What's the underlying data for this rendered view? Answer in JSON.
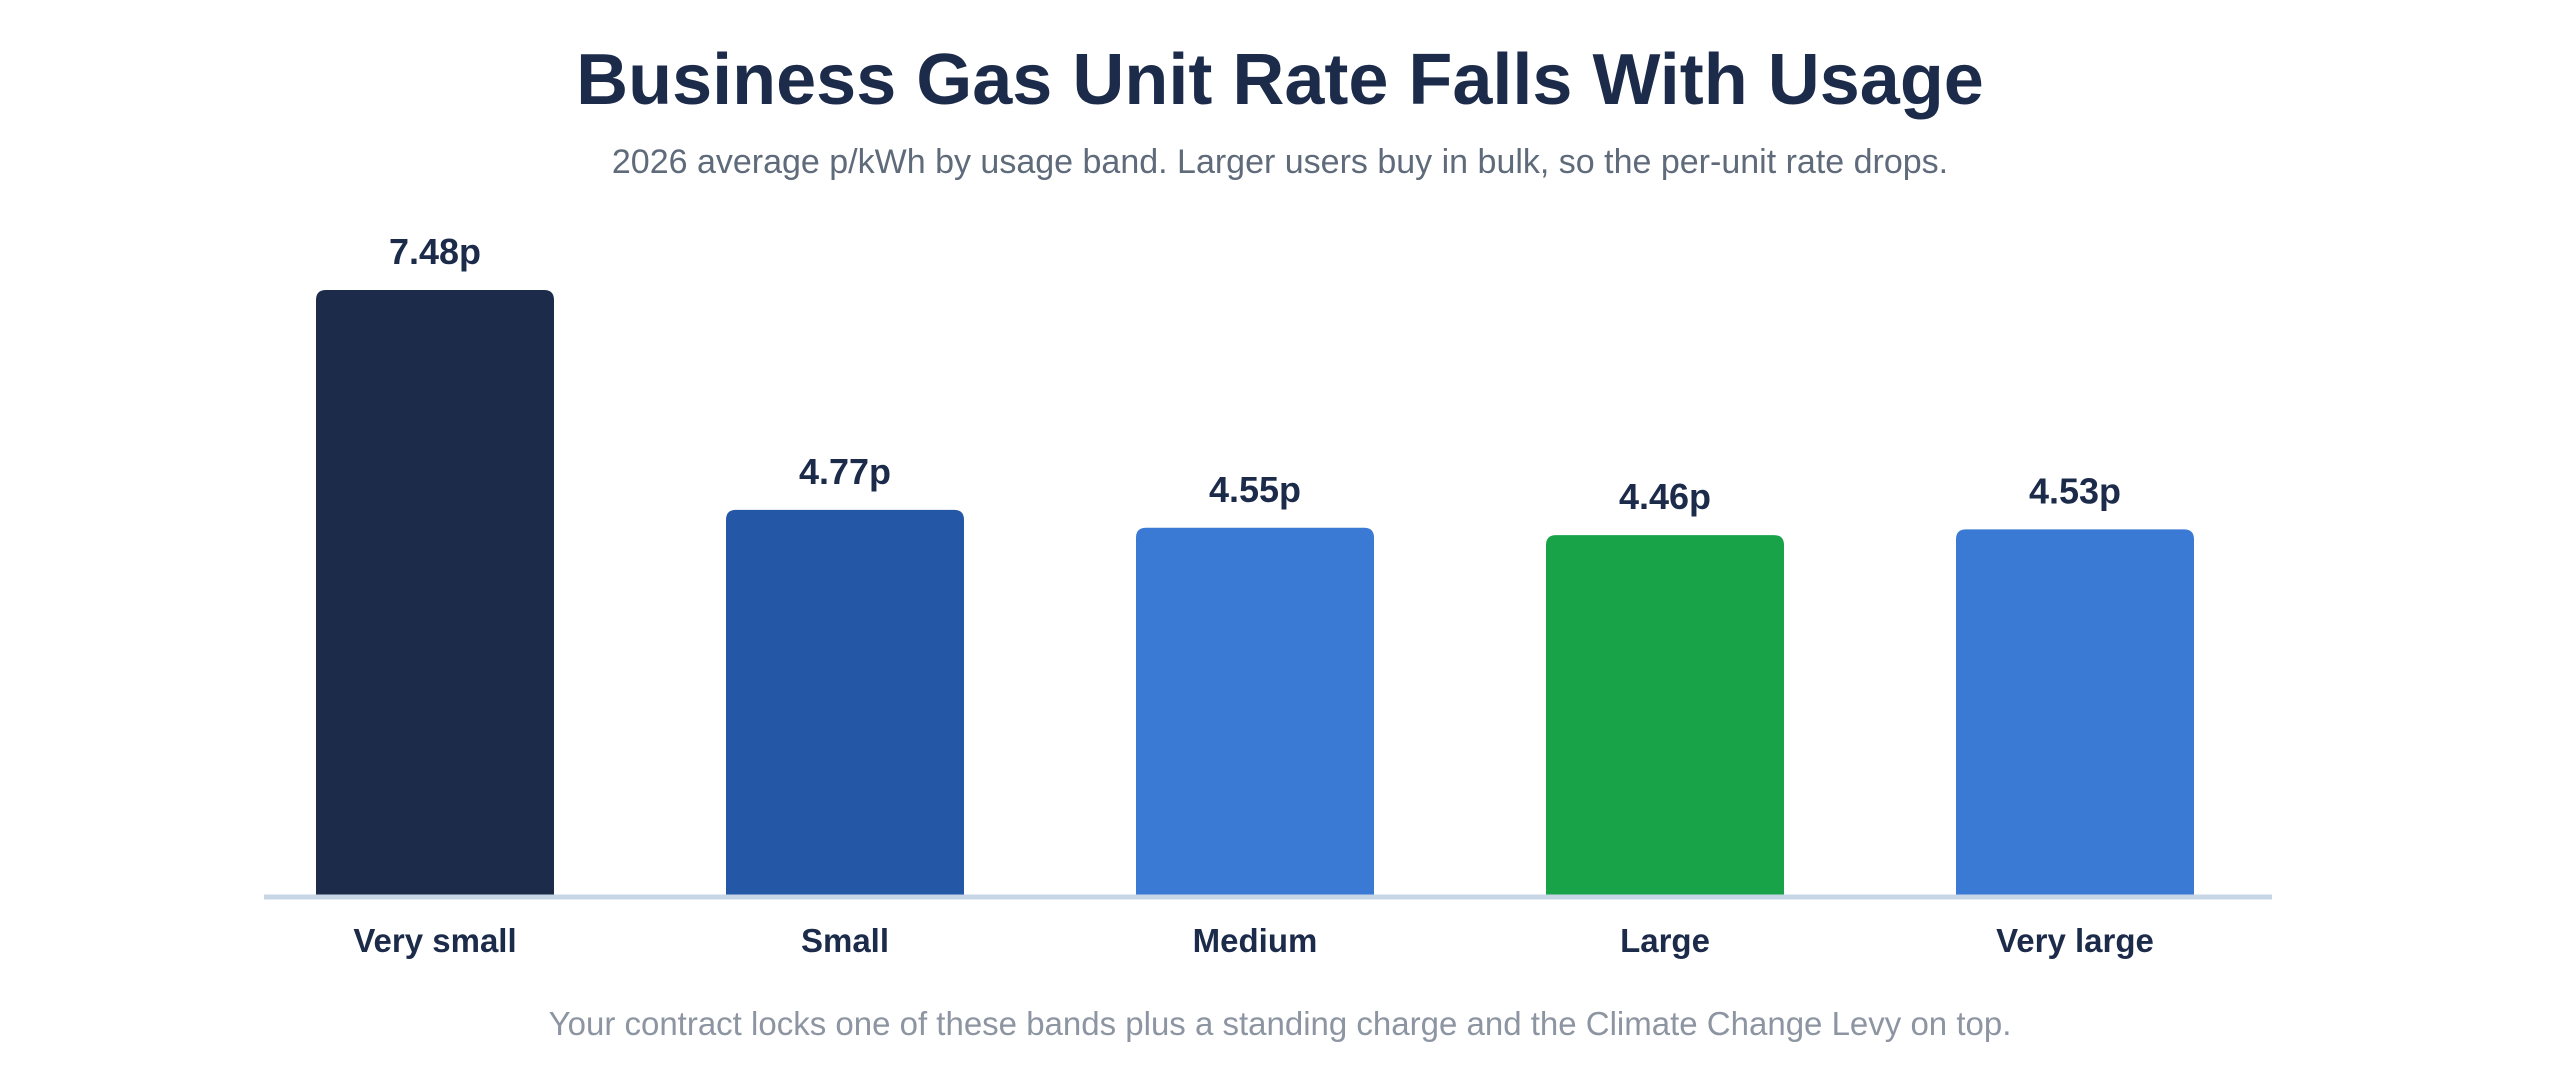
{
  "header": {
    "title": "Business Gas Unit Rate Falls With Usage",
    "subtitle": "2026 average p/kWh by usage band. Larger users buy in bulk, so the per-unit rate drops."
  },
  "footer": {
    "note": "Your contract locks one of these bands plus a standing charge and the Climate Change Levy on top."
  },
  "chart_data": {
    "type": "bar",
    "title": "Business Gas Unit Rate Falls With Usage",
    "subtitle": "2026 average p/kWh by usage band. Larger users buy in bulk, so the per-unit rate drops.",
    "categories": [
      "Very small",
      "Small",
      "Medium",
      "Large",
      "Very large"
    ],
    "values": [
      7.48,
      4.77,
      4.55,
      4.46,
      4.53
    ],
    "value_labels": [
      "7.48p",
      "4.77p",
      "4.55p",
      "4.46p",
      "4.53p"
    ],
    "colors": [
      "#1c2b4a",
      "#2557a7",
      "#3a79d4",
      "#18a349",
      "#3a79d4"
    ],
    "axis_color": "#c7d6e6",
    "xlabel": "",
    "ylabel": "",
    "ylim": [
      0,
      7.48
    ],
    "grid": false,
    "legend": "none"
  }
}
